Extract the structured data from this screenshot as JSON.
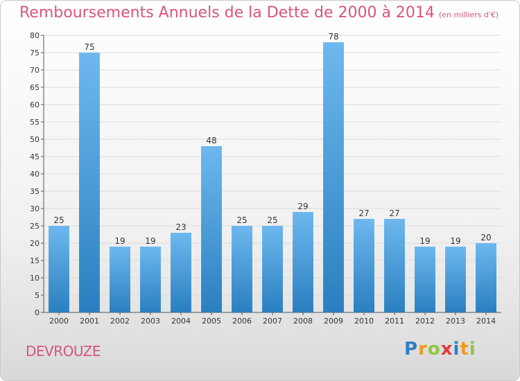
{
  "title": "Remboursements Annuels de la Dette de 2000 à 2014",
  "unit": "(en milliers d'€)",
  "commune": "DEVROUZE",
  "logo": {
    "letters": [
      {
        "ch": "P",
        "color": "#2e7fc6"
      },
      {
        "ch": "r",
        "color": "#f29a1d"
      },
      {
        "ch": "o",
        "color": "#8ec63f"
      },
      {
        "ch": "x",
        "color": "#e23b3b"
      },
      {
        "ch": "i",
        "color": "#2e7fc6"
      },
      {
        "ch": "t",
        "color": "#f29a1d"
      },
      {
        "ch": "i",
        "color": "#8ec63f"
      }
    ]
  },
  "colors": {
    "bar_light": "#6db8ee",
    "bar_dark": "#2a7fc0",
    "title": "#d8557b"
  },
  "chart_data": {
    "type": "bar",
    "categories": [
      "2000",
      "2001",
      "2002",
      "2003",
      "2004",
      "2005",
      "2006",
      "2007",
      "2008",
      "2009",
      "2010",
      "2011",
      "2012",
      "2013",
      "2014"
    ],
    "values": [
      25,
      75,
      19,
      19,
      23,
      48,
      25,
      25,
      29,
      78,
      27,
      27,
      19,
      19,
      20
    ],
    "ylim": [
      0,
      80
    ],
    "yticks": [
      0,
      5,
      10,
      15,
      20,
      25,
      30,
      35,
      40,
      45,
      50,
      55,
      60,
      65,
      70,
      75,
      80
    ],
    "grid": true
  }
}
